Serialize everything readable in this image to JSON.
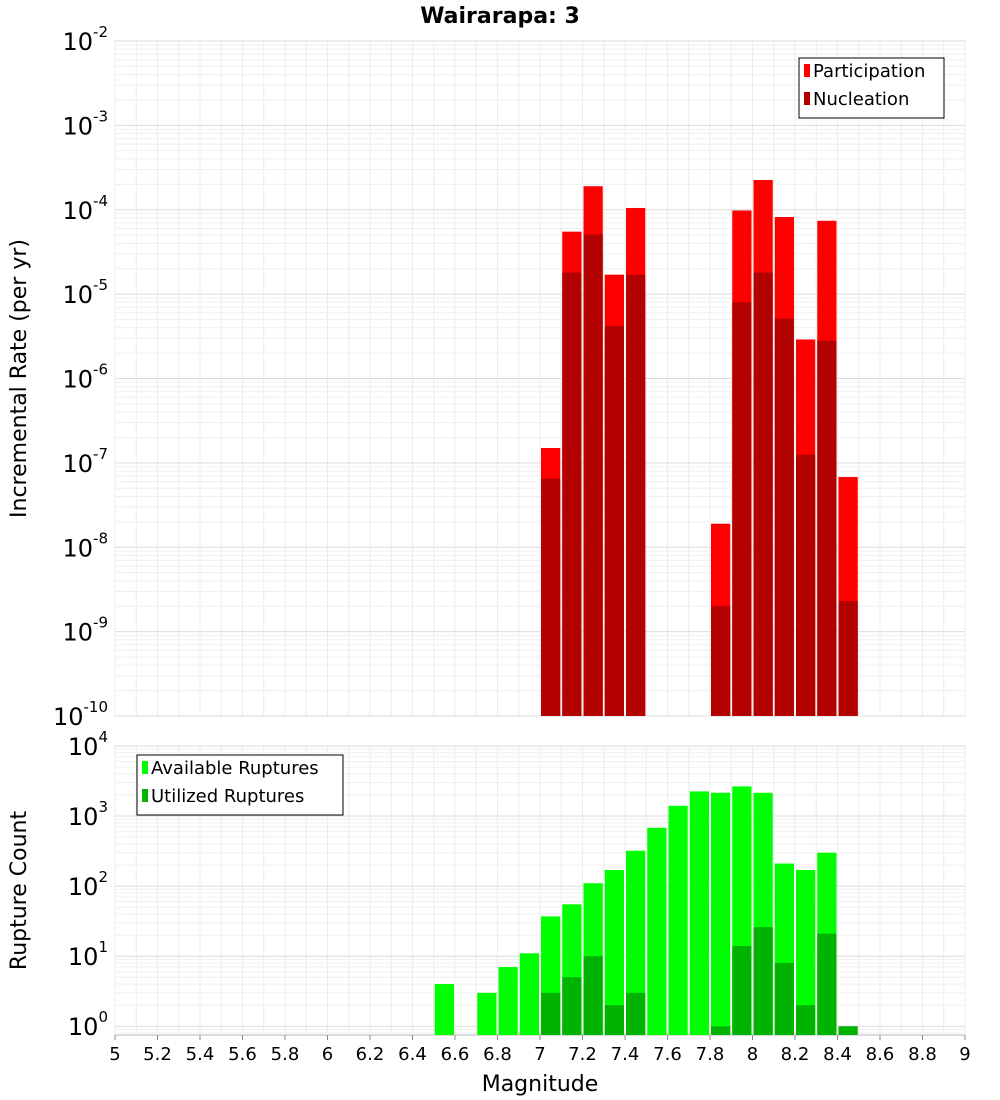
{
  "figure": {
    "title": "Wairarapa: 3",
    "xlabel": "Magnitude"
  },
  "chart_data": [
    {
      "type": "bar",
      "scale": "log",
      "title": "Wairarapa: 3",
      "ylabel": "Incremental Rate (per yr)",
      "xlim": [
        5,
        9
      ],
      "ylim": [
        1e-10,
        0.01
      ],
      "ytick_exponents": [
        "-2",
        "-3",
        "-4",
        "-5",
        "-6",
        "-7",
        "-8",
        "-9",
        "-10"
      ],
      "legend": "top-right",
      "grid": true,
      "x": [
        7.05,
        7.15,
        7.25,
        7.35,
        7.45,
        7.85,
        7.95,
        8.05,
        8.15,
        8.25,
        8.35,
        8.45
      ],
      "series": [
        {
          "name": "Participation",
          "color": "#ff0000",
          "values": [
            1.5e-07,
            5.5e-05,
            0.00019,
            1.7e-05,
            0.000105,
            1.9e-08,
            9.8e-05,
            0.000225,
            8.2e-05,
            2.9e-06,
            7.4e-05,
            6.8e-08
          ]
        },
        {
          "name": "Nucleation",
          "color": "#b30000",
          "values": [
            6.5e-08,
            1.8e-05,
            5.1e-05,
            4.2e-06,
            1.7e-05,
            2e-09,
            8e-06,
            1.8e-05,
            5.1e-06,
            1.25e-07,
            2.8e-06,
            2.3e-09
          ]
        }
      ]
    },
    {
      "type": "bar",
      "scale": "log",
      "ylabel": "Rupture Count",
      "xlim": [
        5,
        9
      ],
      "ylim": [
        0.75,
        10000
      ],
      "ytick_exponents": [
        "4",
        "3",
        "2",
        "1",
        "0"
      ],
      "xticks": [
        "5",
        "5.2",
        "5.4",
        "5.6",
        "5.8",
        "6",
        "6.2",
        "6.4",
        "6.6",
        "6.8",
        "7",
        "7.2",
        "7.4",
        "7.6",
        "7.8",
        "8",
        "8.2",
        "8.4",
        "8.6",
        "8.8",
        "9"
      ],
      "legend": "top-left",
      "grid": true,
      "x": [
        6.55,
        6.75,
        6.85,
        6.95,
        7.05,
        7.15,
        7.25,
        7.35,
        7.45,
        7.55,
        7.65,
        7.75,
        7.85,
        7.95,
        8.05,
        8.15,
        8.25,
        8.35,
        8.45
      ],
      "series": [
        {
          "name": "Available Ruptures",
          "color": "#00ff00",
          "values": [
            4,
            3,
            7,
            11,
            37,
            55,
            110,
            170,
            320,
            680,
            1400,
            2250,
            2150,
            2650,
            2150,
            210,
            170,
            300,
            null
          ]
        },
        {
          "name": "Utilized Ruptures",
          "color": "#00b300",
          "values": [
            null,
            null,
            null,
            null,
            3,
            5,
            10,
            2,
            3,
            null,
            null,
            null,
            1,
            14,
            26,
            8,
            2,
            21,
            1
          ]
        }
      ]
    }
  ]
}
